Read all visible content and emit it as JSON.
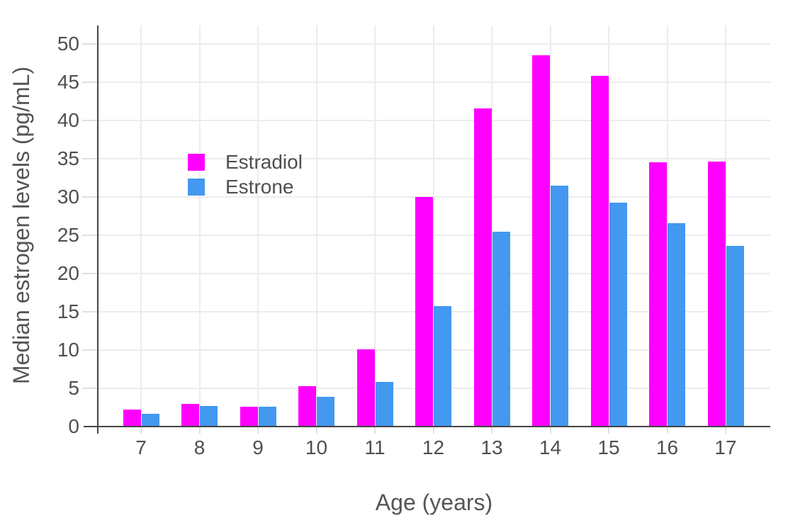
{
  "chart_data": {
    "type": "bar",
    "barmode": "group",
    "title": "",
    "xlabel": "Age (years)",
    "ylabel": "Median estrogen levels (pg/mL)",
    "categories": [
      "7",
      "8",
      "9",
      "10",
      "11",
      "12",
      "13",
      "14",
      "15",
      "16",
      "17"
    ],
    "series": [
      {
        "name": "Estradiol",
        "color": "#FF00FF",
        "values": [
          2.2,
          3.0,
          2.6,
          5.3,
          10.1,
          30.0,
          41.6,
          48.5,
          45.8,
          34.5,
          34.6
        ]
      },
      {
        "name": "Estrone",
        "color": "#4398F0",
        "values": [
          1.7,
          2.7,
          2.6,
          3.9,
          5.8,
          15.7,
          25.5,
          31.5,
          29.3,
          26.6,
          23.6
        ]
      }
    ],
    "y_ticks": [
      0,
      5,
      10,
      15,
      20,
      25,
      30,
      35,
      40,
      45,
      50
    ],
    "ylim": [
      0,
      52.5
    ],
    "grid": true,
    "legend_position": "inside-top-left",
    "style": {
      "background": "#FFFFFF",
      "grid_color": "#ECECEC",
      "tick_color": "#E0E0E0",
      "axis_line_color": "#444444",
      "text_color": "#4F4F4F"
    }
  }
}
